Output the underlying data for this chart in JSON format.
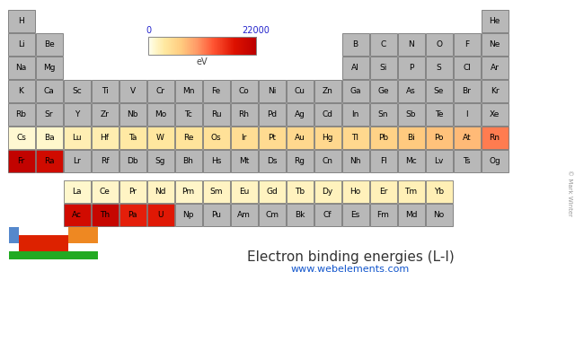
{
  "title": "Electron binding energies (L-I)",
  "website": "www.webelements.com",
  "colorbar_min": 0,
  "colorbar_max": 22000,
  "colorbar_label": "eV",
  "elements": [
    {
      "symbol": "H",
      "row": 1,
      "col": 1,
      "value": null
    },
    {
      "symbol": "He",
      "row": 1,
      "col": 18,
      "value": null
    },
    {
      "symbol": "Li",
      "row": 2,
      "col": 1,
      "value": null
    },
    {
      "symbol": "Be",
      "row": 2,
      "col": 2,
      "value": null
    },
    {
      "symbol": "B",
      "row": 2,
      "col": 13,
      "value": null
    },
    {
      "symbol": "C",
      "row": 2,
      "col": 14,
      "value": null
    },
    {
      "symbol": "N",
      "row": 2,
      "col": 15,
      "value": null
    },
    {
      "symbol": "O",
      "row": 2,
      "col": 16,
      "value": null
    },
    {
      "symbol": "F",
      "row": 2,
      "col": 17,
      "value": null
    },
    {
      "symbol": "Ne",
      "row": 2,
      "col": 18,
      "value": null
    },
    {
      "symbol": "Na",
      "row": 3,
      "col": 1,
      "value": null
    },
    {
      "symbol": "Mg",
      "row": 3,
      "col": 2,
      "value": null
    },
    {
      "symbol": "Al",
      "row": 3,
      "col": 13,
      "value": null
    },
    {
      "symbol": "Si",
      "row": 3,
      "col": 14,
      "value": null
    },
    {
      "symbol": "P",
      "row": 3,
      "col": 15,
      "value": null
    },
    {
      "symbol": "S",
      "row": 3,
      "col": 16,
      "value": null
    },
    {
      "symbol": "Cl",
      "row": 3,
      "col": 17,
      "value": null
    },
    {
      "symbol": "Ar",
      "row": 3,
      "col": 18,
      "value": null
    },
    {
      "symbol": "K",
      "row": 4,
      "col": 1,
      "value": null
    },
    {
      "symbol": "Ca",
      "row": 4,
      "col": 2,
      "value": null
    },
    {
      "symbol": "Sc",
      "row": 4,
      "col": 3,
      "value": null
    },
    {
      "symbol": "Ti",
      "row": 4,
      "col": 4,
      "value": null
    },
    {
      "symbol": "V",
      "row": 4,
      "col": 5,
      "value": null
    },
    {
      "symbol": "Cr",
      "row": 4,
      "col": 6,
      "value": null
    },
    {
      "symbol": "Mn",
      "row": 4,
      "col": 7,
      "value": null
    },
    {
      "symbol": "Fe",
      "row": 4,
      "col": 8,
      "value": null
    },
    {
      "symbol": "Co",
      "row": 4,
      "col": 9,
      "value": null
    },
    {
      "symbol": "Ni",
      "row": 4,
      "col": 10,
      "value": null
    },
    {
      "symbol": "Cu",
      "row": 4,
      "col": 11,
      "value": null
    },
    {
      "symbol": "Zn",
      "row": 4,
      "col": 12,
      "value": null
    },
    {
      "symbol": "Ga",
      "row": 4,
      "col": 13,
      "value": null
    },
    {
      "symbol": "Ge",
      "row": 4,
      "col": 14,
      "value": null
    },
    {
      "symbol": "As",
      "row": 4,
      "col": 15,
      "value": null
    },
    {
      "symbol": "Se",
      "row": 4,
      "col": 16,
      "value": null
    },
    {
      "symbol": "Br",
      "row": 4,
      "col": 17,
      "value": null
    },
    {
      "symbol": "Kr",
      "row": 4,
      "col": 18,
      "value": null
    },
    {
      "symbol": "Rb",
      "row": 5,
      "col": 1,
      "value": null
    },
    {
      "symbol": "Sr",
      "row": 5,
      "col": 2,
      "value": null
    },
    {
      "symbol": "Y",
      "row": 5,
      "col": 3,
      "value": null
    },
    {
      "symbol": "Zr",
      "row": 5,
      "col": 4,
      "value": null
    },
    {
      "symbol": "Nb",
      "row": 5,
      "col": 5,
      "value": null
    },
    {
      "symbol": "Mo",
      "row": 5,
      "col": 6,
      "value": null
    },
    {
      "symbol": "Tc",
      "row": 5,
      "col": 7,
      "value": null
    },
    {
      "symbol": "Ru",
      "row": 5,
      "col": 8,
      "value": null
    },
    {
      "symbol": "Rh",
      "row": 5,
      "col": 9,
      "value": null
    },
    {
      "symbol": "Pd",
      "row": 5,
      "col": 10,
      "value": null
    },
    {
      "symbol": "Ag",
      "row": 5,
      "col": 11,
      "value": null
    },
    {
      "symbol": "Cd",
      "row": 5,
      "col": 12,
      "value": null
    },
    {
      "symbol": "In",
      "row": 5,
      "col": 13,
      "value": null
    },
    {
      "symbol": "Sn",
      "row": 5,
      "col": 14,
      "value": null
    },
    {
      "symbol": "Sb",
      "row": 5,
      "col": 15,
      "value": null
    },
    {
      "symbol": "Te",
      "row": 5,
      "col": 16,
      "value": null
    },
    {
      "symbol": "I",
      "row": 5,
      "col": 17,
      "value": null
    },
    {
      "symbol": "Xe",
      "row": 5,
      "col": 18,
      "value": null
    },
    {
      "symbol": "Cs",
      "row": 6,
      "col": 1,
      "value": 1072
    },
    {
      "symbol": "Ba",
      "row": 6,
      "col": 2,
      "value": 1293
    },
    {
      "symbol": "Lu",
      "row": 6,
      "col": 3,
      "value": 2491
    },
    {
      "symbol": "Hf",
      "row": 6,
      "col": 4,
      "value": 2601
    },
    {
      "symbol": "Ta",
      "row": 6,
      "col": 5,
      "value": 3136
    },
    {
      "symbol": "W",
      "row": 6,
      "col": 6,
      "value": 3414
    },
    {
      "symbol": "Re",
      "row": 6,
      "col": 7,
      "value": 3806
    },
    {
      "symbol": "Os",
      "row": 6,
      "col": 8,
      "value": 4149
    },
    {
      "symbol": "Ir",
      "row": 6,
      "col": 9,
      "value": 4559
    },
    {
      "symbol": "Pt",
      "row": 6,
      "col": 10,
      "value": 4852
    },
    {
      "symbol": "Au",
      "row": 6,
      "col": 11,
      "value": 5188
    },
    {
      "symbol": "Hg",
      "row": 6,
      "col": 12,
      "value": 5182
    },
    {
      "symbol": "Tl",
      "row": 6,
      "col": 13,
      "value": 5182
    },
    {
      "symbol": "Pb",
      "row": 6,
      "col": 14,
      "value": 5890
    },
    {
      "symbol": "Bi",
      "row": 6,
      "col": 15,
      "value": 6754
    },
    {
      "symbol": "Po",
      "row": 6,
      "col": 16,
      "value": 7245
    },
    {
      "symbol": "At",
      "row": 6,
      "col": 17,
      "value": 7800
    },
    {
      "symbol": "Rn",
      "row": 6,
      "col": 18,
      "value": 11270
    },
    {
      "symbol": "Fr",
      "row": 7,
      "col": 1,
      "value": 21105
    },
    {
      "symbol": "Ra",
      "row": 7,
      "col": 2,
      "value": 19237
    },
    {
      "symbol": "Lr",
      "row": 7,
      "col": 3,
      "value": null
    },
    {
      "symbol": "Rf",
      "row": 7,
      "col": 4,
      "value": null
    },
    {
      "symbol": "Db",
      "row": 7,
      "col": 5,
      "value": null
    },
    {
      "symbol": "Sg",
      "row": 7,
      "col": 6,
      "value": null
    },
    {
      "symbol": "Bh",
      "row": 7,
      "col": 7,
      "value": null
    },
    {
      "symbol": "Hs",
      "row": 7,
      "col": 8,
      "value": null
    },
    {
      "symbol": "Mt",
      "row": 7,
      "col": 9,
      "value": null
    },
    {
      "symbol": "Ds",
      "row": 7,
      "col": 10,
      "value": null
    },
    {
      "symbol": "Rg",
      "row": 7,
      "col": 11,
      "value": null
    },
    {
      "symbol": "Cn",
      "row": 7,
      "col": 12,
      "value": null
    },
    {
      "symbol": "Nh",
      "row": 7,
      "col": 13,
      "value": null
    },
    {
      "symbol": "Fl",
      "row": 7,
      "col": 14,
      "value": null
    },
    {
      "symbol": "Mc",
      "row": 7,
      "col": 15,
      "value": null
    },
    {
      "symbol": "Lv",
      "row": 7,
      "col": 16,
      "value": null
    },
    {
      "symbol": "Ts",
      "row": 7,
      "col": 17,
      "value": null
    },
    {
      "symbol": "Og",
      "row": 7,
      "col": 18,
      "value": null
    },
    {
      "symbol": "La",
      "row": 9,
      "col": 3,
      "value": 1362
    },
    {
      "symbol": "Ce",
      "row": 9,
      "col": 4,
      "value": 1526
    },
    {
      "symbol": "Pr",
      "row": 9,
      "col": 5,
      "value": 1675
    },
    {
      "symbol": "Nd",
      "row": 9,
      "col": 6,
      "value": 1800
    },
    {
      "symbol": "Pm",
      "row": 9,
      "col": 7,
      "value": 1471
    },
    {
      "symbol": "Sm",
      "row": 9,
      "col": 8,
      "value": 1723
    },
    {
      "symbol": "Eu",
      "row": 9,
      "col": 9,
      "value": 1800
    },
    {
      "symbol": "Gd",
      "row": 9,
      "col": 10,
      "value": 1881
    },
    {
      "symbol": "Tb",
      "row": 9,
      "col": 11,
      "value": 1968
    },
    {
      "symbol": "Dy",
      "row": 9,
      "col": 12,
      "value": 2047
    },
    {
      "symbol": "Ho",
      "row": 9,
      "col": 13,
      "value": 2128
    },
    {
      "symbol": "Er",
      "row": 9,
      "col": 14,
      "value": 2207
    },
    {
      "symbol": "Tm",
      "row": 9,
      "col": 15,
      "value": 2307
    },
    {
      "symbol": "Yb",
      "row": 9,
      "col": 16,
      "value": 2398
    },
    {
      "symbol": "Ac",
      "row": 10,
      "col": 3,
      "value": 19083
    },
    {
      "symbol": "Th",
      "row": 10,
      "col": 4,
      "value": 20472
    },
    {
      "symbol": "Pa",
      "row": 10,
      "col": 5,
      "value": 16733
    },
    {
      "symbol": "U",
      "row": 10,
      "col": 6,
      "value": 17166
    },
    {
      "symbol": "Np",
      "row": 10,
      "col": 7,
      "value": null
    },
    {
      "symbol": "Pu",
      "row": 10,
      "col": 8,
      "value": null
    },
    {
      "symbol": "Am",
      "row": 10,
      "col": 9,
      "value": null
    },
    {
      "symbol": "Cm",
      "row": 10,
      "col": 10,
      "value": null
    },
    {
      "symbol": "Bk",
      "row": 10,
      "col": 11,
      "value": null
    },
    {
      "symbol": "Cf",
      "row": 10,
      "col": 12,
      "value": null
    },
    {
      "symbol": "Es",
      "row": 10,
      "col": 13,
      "value": null
    },
    {
      "symbol": "Fm",
      "row": 10,
      "col": 14,
      "value": null
    },
    {
      "symbol": "Md",
      "row": 10,
      "col": 15,
      "value": null
    },
    {
      "symbol": "No",
      "row": 10,
      "col": 16,
      "value": null
    }
  ]
}
